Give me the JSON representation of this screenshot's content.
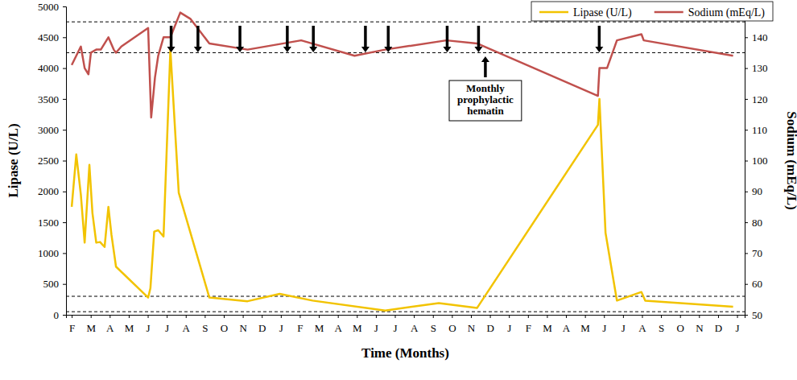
{
  "chart_data": {
    "type": "line",
    "x_label": "Time (Months)",
    "y_label": "Lipase (U/L)",
    "y2_label": "Sodium (mEq/L)",
    "xlim": [
      -0.3,
      35.4
    ],
    "xticks": [
      {
        "value": 0,
        "label": "F"
      },
      {
        "value": 1,
        "label": "M"
      },
      {
        "value": 2,
        "label": "A"
      },
      {
        "value": 3,
        "label": "M"
      },
      {
        "value": 4,
        "label": "J"
      },
      {
        "value": 5,
        "label": "J"
      },
      {
        "value": 6,
        "label": "A"
      },
      {
        "value": 7,
        "label": "S"
      },
      {
        "value": 8,
        "label": "O"
      },
      {
        "value": 9,
        "label": "N"
      },
      {
        "value": 10,
        "label": "D"
      },
      {
        "value": 11,
        "label": "J"
      },
      {
        "value": 12,
        "label": "F"
      },
      {
        "value": 13,
        "label": "M"
      },
      {
        "value": 14,
        "label": "A"
      },
      {
        "value": 15,
        "label": "M"
      },
      {
        "value": 16,
        "label": "J"
      },
      {
        "value": 17,
        "label": "J"
      },
      {
        "value": 18,
        "label": "A"
      },
      {
        "value": 19,
        "label": "S"
      },
      {
        "value": 20,
        "label": "O"
      },
      {
        "value": 21,
        "label": "N"
      },
      {
        "value": 22,
        "label": "D"
      },
      {
        "value": 23,
        "label": "J"
      },
      {
        "value": 24,
        "label": "F"
      },
      {
        "value": 25,
        "label": "M"
      },
      {
        "value": 26,
        "label": "A"
      },
      {
        "value": 27,
        "label": "M"
      },
      {
        "value": 28,
        "label": "J"
      },
      {
        "value": 29,
        "label": "J"
      },
      {
        "value": 30,
        "label": "A"
      },
      {
        "value": 31,
        "label": "S"
      },
      {
        "value": 32,
        "label": "O"
      },
      {
        "value": 33,
        "label": "N"
      },
      {
        "value": 34,
        "label": "D"
      },
      {
        "value": 35,
        "label": "J"
      }
    ],
    "ylim": [
      0,
      5000
    ],
    "yticks": [
      0,
      500,
      1000,
      1500,
      2000,
      2500,
      3000,
      3500,
      4000,
      4500,
      5000
    ],
    "y2lim": [
      50,
      150
    ],
    "y2ticks": [
      50,
      60,
      70,
      80,
      90,
      100,
      110,
      120,
      130,
      140,
      150
    ],
    "grid": false,
    "legend": "top-right",
    "series": [
      {
        "name": "Lipase (U/L)",
        "color": "#f2c300",
        "x": [
          0,
          0.24,
          0.48,
          0.68,
          0.93,
          1.09,
          1.29,
          1.49,
          1.73,
          1.93,
          2.09,
          2.33,
          4.02,
          4.14,
          4.34,
          4.55,
          4.83,
          5.19,
          5.63,
          7.24,
          9.25,
          10.94,
          12.67,
          16.49,
          19.31,
          21.32,
          27.68,
          27.76,
          28.08,
          28.68,
          29.97,
          30.17,
          34.79
        ],
        "values": [
          1750,
          2600,
          1950,
          1170,
          2430,
          1650,
          1170,
          1180,
          1100,
          1750,
          1300,
          780,
          280,
          430,
          1350,
          1370,
          1270,
          4300,
          1980,
          280,
          220,
          340,
          230,
          70,
          190,
          110,
          3080,
          3500,
          1330,
          230,
          370,
          230,
          130
        ]
      },
      {
        "name": "Sodium (mEq/L)",
        "color": "#c0504d",
        "axis": "y2",
        "x": [
          0,
          0.48,
          0.68,
          0.88,
          1.01,
          1.29,
          1.53,
          1.93,
          2.21,
          2.33,
          2.61,
          4.02,
          4.18,
          4.38,
          4.55,
          4.83,
          5.19,
          5.71,
          6.24,
          7.24,
          9.25,
          12.07,
          14.88,
          16.49,
          19.71,
          21.32,
          27.68,
          27.76,
          28.16,
          28.68,
          29.97,
          30.09,
          34.79
        ],
        "values": [
          131,
          137,
          130,
          128,
          135,
          136,
          136,
          140,
          136,
          135,
          137,
          143,
          114,
          127,
          134,
          140,
          140,
          148,
          146,
          138,
          136,
          139,
          134,
          136,
          139,
          138,
          121,
          130,
          130,
          139,
          141,
          139,
          134
        ]
      }
    ],
    "reference_lines": [
      {
        "axis": "y",
        "value": 300
      },
      {
        "axis": "y",
        "value": 50
      },
      {
        "axis": "y2",
        "value": 145
      },
      {
        "axis": "y2",
        "value": 135
      }
    ],
    "hematin_arrows": [
      5.23,
      6.64,
      8.85,
      11.34,
      12.71,
      15.45,
      16.65,
      19.75,
      21.4,
      27.75
    ],
    "annotation": {
      "text": [
        "Monthly",
        "prophylactic",
        "hematin"
      ],
      "x": 21.76
    }
  }
}
